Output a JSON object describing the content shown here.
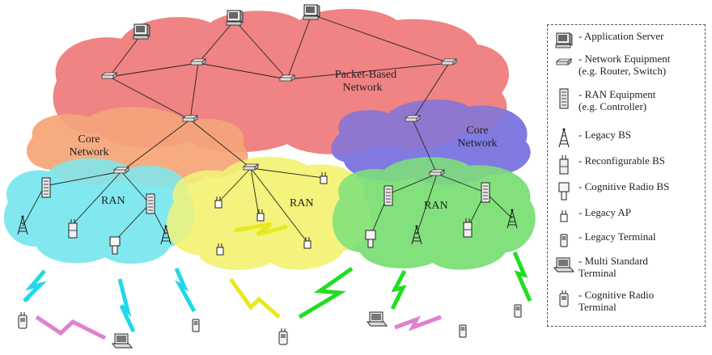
{
  "clouds": {
    "packet": "Packet-Based\nNetwork",
    "core_left": "Core\nNetwork",
    "core_right": "Core\nNetwork",
    "ran_left": "RAN",
    "ran_mid": "RAN",
    "ran_right": "RAN"
  },
  "legend": {
    "items": [
      {
        "icon": "application-server-icon",
        "text": "- Application Server"
      },
      {
        "icon": "network-equipment-icon",
        "text": "- Network Equipment\n(e.g. Router, Switch)"
      },
      {
        "icon": "ran-equipment-icon",
        "text": "- RAN Equipment\n(e.g. Controller)"
      },
      {
        "icon": "legacy-bs-icon",
        "text": "- Legacy BS"
      },
      {
        "icon": "reconfigurable-bs-icon",
        "text": "- Reconfigurable BS"
      },
      {
        "icon": "cognitive-radio-bs-icon",
        "text": "- Cognitive Radio BS"
      },
      {
        "icon": "legacy-ap-icon",
        "text": "- Legacy AP"
      },
      {
        "icon": "legacy-terminal-icon",
        "text": "- Legacy Terminal"
      },
      {
        "icon": "multi-standard-terminal-icon",
        "text": "- Multi Standard\nTerminal"
      },
      {
        "icon": "cognitive-radio-terminal-icon",
        "text": "- Cognitive Radio\nTerminal"
      }
    ]
  },
  "colors": {
    "packet": "#f08080",
    "core_left": "#f5a97a",
    "core_right": "#7b74e0",
    "ran_left": "#7fe8ef",
    "ran_mid": "#f2f27a",
    "ran_right": "#7fe07a",
    "bolt_cyan": "#22d8e8",
    "bolt_yellow": "#e8e820",
    "bolt_green": "#22dd22",
    "bolt_pink": "#e080d0"
  }
}
